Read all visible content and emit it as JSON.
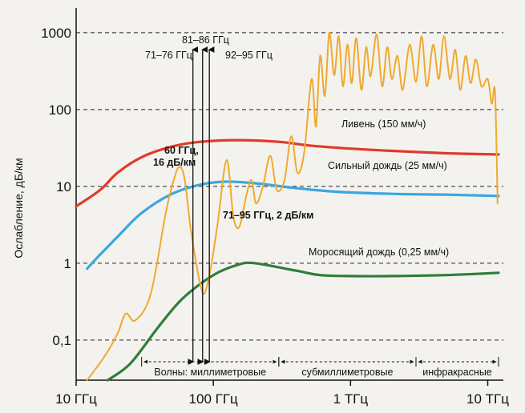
{
  "chart_data": {
    "type": "line",
    "title": "",
    "ylabel": "Ослабление, дБ/км",
    "xlabel": "",
    "x_scale": "log",
    "y_scale": "log",
    "xlim_ghz": [
      10,
      13000
    ],
    "ylim": [
      0.03,
      1500
    ],
    "grid": "dashed horizontal",
    "x_ticks": [
      {
        "value": 10,
        "label": "10 ГГц"
      },
      {
        "value": 100,
        "label": "100 ГГц"
      },
      {
        "value": 1000,
        "label": "1 ТГц"
      },
      {
        "value": 10000,
        "label": "10 ТГц"
      }
    ],
    "y_ticks": [
      {
        "value": 0.1,
        "label": "0,1"
      },
      {
        "value": 1,
        "label": "1"
      },
      {
        "value": 10,
        "label": "10"
      },
      {
        "value": 100,
        "label": "100"
      },
      {
        "value": 1000,
        "label": "1000"
      }
    ],
    "series": [
      {
        "name": "Ливень (150 мм/ч)",
        "color": "#e03a2a",
        "points": [
          [
            10,
            5.5
          ],
          [
            15,
            9
          ],
          [
            20,
            15
          ],
          [
            30,
            24
          ],
          [
            50,
            33
          ],
          [
            80,
            38
          ],
          [
            150,
            40
          ],
          [
            300,
            38
          ],
          [
            500,
            34
          ],
          [
            1000,
            31
          ],
          [
            2000,
            29
          ],
          [
            5000,
            27
          ],
          [
            12000,
            26
          ]
        ]
      },
      {
        "name": "Сильный дождь (25 мм/ч)",
        "color": "#3aa7df",
        "points": [
          [
            12,
            0.85
          ],
          [
            15,
            1.3
          ],
          [
            20,
            2.2
          ],
          [
            30,
            4.5
          ],
          [
            50,
            8
          ],
          [
            80,
            10.5
          ],
          [
            120,
            11.5
          ],
          [
            200,
            11
          ],
          [
            400,
            9.5
          ],
          [
            800,
            8.5
          ],
          [
            2000,
            8
          ],
          [
            5000,
            7.8
          ],
          [
            12000,
            7.5
          ]
        ]
      },
      {
        "name": "Моросящий дождь (0,25 мм/ч)",
        "color": "#2f7d3a",
        "points": [
          [
            17,
            0.022
          ],
          [
            25,
            0.05
          ],
          [
            40,
            0.15
          ],
          [
            60,
            0.35
          ],
          [
            100,
            0.7
          ],
          [
            150,
            0.95
          ],
          [
            200,
            1.0
          ],
          [
            400,
            0.8
          ],
          [
            600,
            0.7
          ],
          [
            1000,
            0.68
          ],
          [
            2000,
            0.68
          ],
          [
            5000,
            0.7
          ],
          [
            12000,
            0.75
          ]
        ]
      },
      {
        "name": "",
        "color": "#efaa2e",
        "points": [
          [
            12,
            0.025
          ],
          [
            16,
            0.06
          ],
          [
            20,
            0.12
          ],
          [
            23,
            0.22
          ],
          [
            27,
            0.18
          ],
          [
            35,
            0.4
          ],
          [
            45,
            4.5
          ],
          [
            52,
            13
          ],
          [
            57,
            18
          ],
          [
            62,
            12
          ],
          [
            68,
            3
          ],
          [
            75,
            1
          ],
          [
            80,
            0.55
          ],
          [
            86,
            0.4
          ],
          [
            95,
            0.8
          ],
          [
            108,
            3.5
          ],
          [
            125,
            22
          ],
          [
            140,
            4
          ],
          [
            155,
            3
          ],
          [
            175,
            8
          ],
          [
            190,
            12
          ],
          [
            205,
            6
          ],
          [
            230,
            10
          ],
          [
            260,
            25
          ],
          [
            290,
            9
          ],
          [
            330,
            12
          ],
          [
            370,
            45
          ],
          [
            410,
            15
          ],
          [
            460,
            28
          ],
          [
            520,
            250
          ],
          [
            560,
            60
          ],
          [
            600,
            500
          ],
          [
            650,
            150
          ],
          [
            700,
            1000
          ],
          [
            760,
            280
          ],
          [
            820,
            900
          ],
          [
            880,
            200
          ],
          [
            950,
            700
          ],
          [
            1020,
            220
          ],
          [
            1100,
            850
          ],
          [
            1200,
            180
          ],
          [
            1300,
            650
          ],
          [
            1400,
            270
          ],
          [
            1550,
            950
          ],
          [
            1700,
            200
          ],
          [
            1850,
            650
          ],
          [
            2000,
            250
          ],
          [
            2200,
            500
          ],
          [
            2400,
            180
          ],
          [
            2700,
            700
          ],
          [
            3000,
            230
          ],
          [
            3300,
            900
          ],
          [
            3600,
            200
          ],
          [
            4000,
            700
          ],
          [
            4400,
            250
          ],
          [
            4800,
            900
          ],
          [
            5300,
            250
          ],
          [
            5800,
            600
          ],
          [
            6300,
            180
          ],
          [
            6900,
            500
          ],
          [
            7500,
            220
          ],
          [
            8200,
            450
          ],
          [
            9000,
            200
          ],
          [
            10000,
            250
          ],
          [
            10700,
            120
          ],
          [
            11300,
            170
          ],
          [
            11800,
            6
          ]
        ]
      }
    ],
    "series_labels": [
      {
        "series": 0,
        "text": "Ливень (150 мм/ч)"
      },
      {
        "series": 1,
        "text": "Сильный дождь (25 мм/ч)"
      },
      {
        "series": 2,
        "text": "Моросящий дождь (0,25 мм/ч)"
      }
    ],
    "annotations": [
      {
        "text": "60 ГГц,",
        "bold": true
      },
      {
        "text": "16 дБ/км",
        "bold": true
      },
      {
        "text": "71–95 ГГц, 2 дБ/км",
        "bold": true
      },
      {
        "text": "81–86 ГГц",
        "bold": false
      },
      {
        "text": "71–76 ГГц",
        "bold": false
      },
      {
        "text": "92–95 ГГц",
        "bold": false
      }
    ],
    "band_markers_ghz": [
      71,
      83.5,
      93.5
    ],
    "bands": [
      {
        "label": "Волны: миллиметровые",
        "from": 30,
        "to": 300
      },
      {
        "label": "субмиллиметровые",
        "from": 300,
        "to": 3000
      },
      {
        "label": "инфракрасные",
        "from": 3000,
        "to": 13000
      }
    ]
  }
}
